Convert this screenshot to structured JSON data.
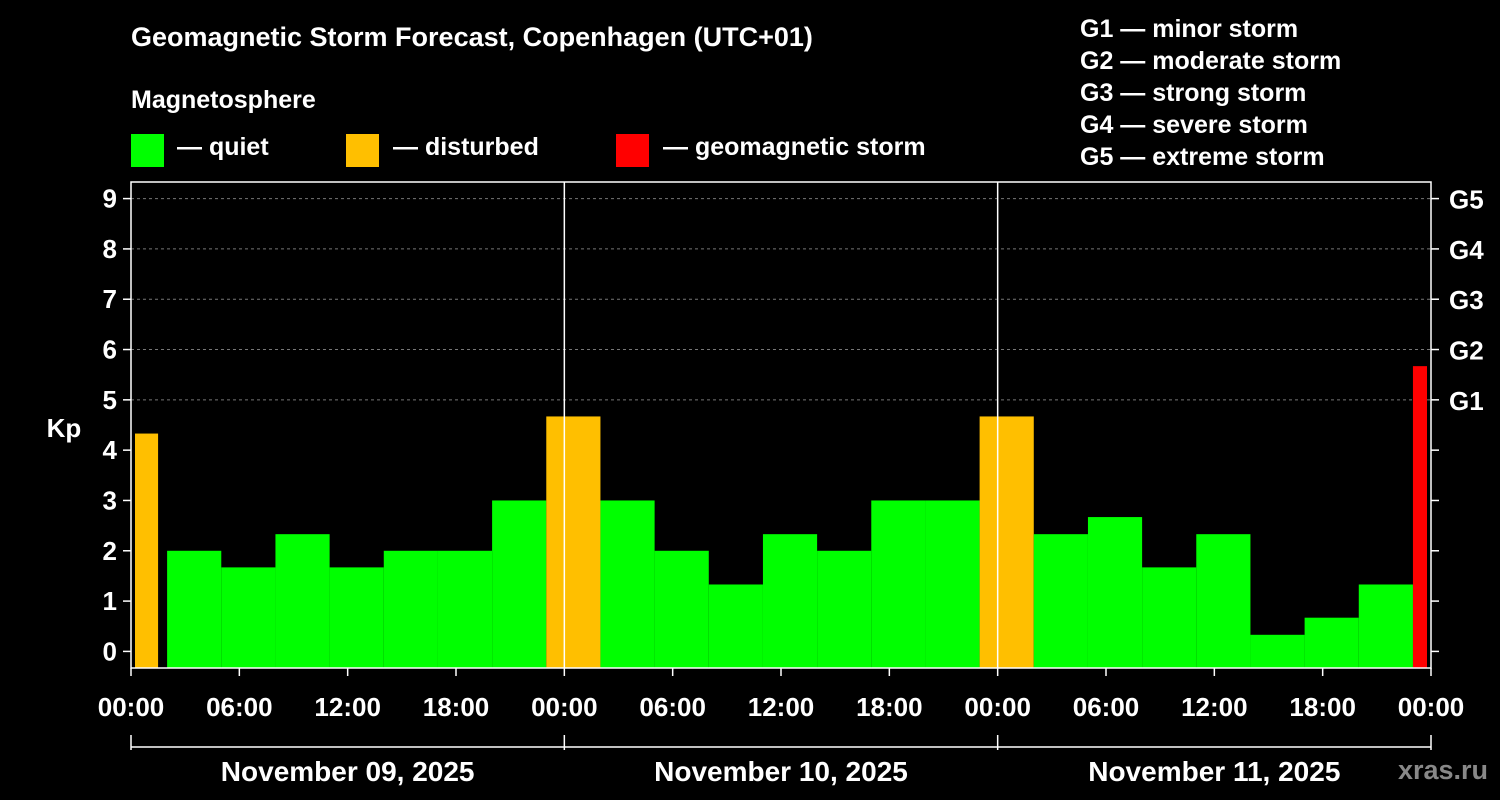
{
  "title": "Geomagnetic Storm Forecast, Copenhagen (UTC+01)",
  "magnetosphere_heading": "Magnetosphere",
  "legend": [
    {
      "label": "— quiet",
      "color": "#00ff00"
    },
    {
      "label": "— disturbed",
      "color": "#ffbf00"
    },
    {
      "label": "— geomagnetic storm",
      "color": "#ff0000"
    }
  ],
  "storm_scale": [
    "G1 — minor storm",
    "G2 — moderate storm",
    "G3 — strong storm",
    "G4 — severe storm",
    "G5 — extreme storm"
  ],
  "watermark": "xras.ru",
  "chart_data": {
    "type": "bar",
    "title": "Geomagnetic Storm Forecast, Copenhagen (UTC+01)",
    "ylabel": "Kp",
    "ylim": [
      -0.33,
      9.33
    ],
    "y_ticks": [
      0,
      1,
      2,
      3,
      4,
      5,
      6,
      7,
      8,
      9
    ],
    "right_axis": [
      {
        "kp": 5,
        "label": "G1"
      },
      {
        "kp": 6,
        "label": "G2"
      },
      {
        "kp": 7,
        "label": "G3"
      },
      {
        "kp": 8,
        "label": "G4"
      },
      {
        "kp": 9,
        "label": "G5"
      }
    ],
    "x_ticks": [
      "00:00",
      "06:00",
      "12:00",
      "18:00",
      "00:00",
      "06:00",
      "12:00",
      "18:00",
      "00:00",
      "06:00",
      "12:00",
      "18:00",
      "00:00"
    ],
    "days": [
      "November 09, 2025",
      "November 10, 2025",
      "November 11, 2025"
    ],
    "grid": "horizontal dashed",
    "bars": [
      {
        "day": 0,
        "start_hour": 0,
        "end_hour": 1.5,
        "kp": 4.33,
        "status": "disturbed"
      },
      {
        "day": 0,
        "start_hour": 2,
        "end_hour": 5,
        "kp": 2.0,
        "status": "quiet"
      },
      {
        "day": 0,
        "start_hour": 5,
        "end_hour": 8,
        "kp": 1.67,
        "status": "quiet"
      },
      {
        "day": 0,
        "start_hour": 8,
        "end_hour": 11,
        "kp": 2.33,
        "status": "quiet"
      },
      {
        "day": 0,
        "start_hour": 11,
        "end_hour": 14,
        "kp": 1.67,
        "status": "quiet"
      },
      {
        "day": 0,
        "start_hour": 14,
        "end_hour": 17,
        "kp": 2.0,
        "status": "quiet"
      },
      {
        "day": 0,
        "start_hour": 17,
        "end_hour": 20,
        "kp": 2.0,
        "status": "quiet"
      },
      {
        "day": 0,
        "start_hour": 20,
        "end_hour": 23,
        "kp": 3.0,
        "status": "quiet"
      },
      {
        "day": 0,
        "start_hour": 23,
        "end_hour": 26,
        "kp": 4.67,
        "status": "disturbed"
      },
      {
        "day": 1,
        "start_hour": 2,
        "end_hour": 5,
        "kp": 3.0,
        "status": "quiet"
      },
      {
        "day": 1,
        "start_hour": 5,
        "end_hour": 8,
        "kp": 2.0,
        "status": "quiet"
      },
      {
        "day": 1,
        "start_hour": 8,
        "end_hour": 11,
        "kp": 1.33,
        "status": "quiet"
      },
      {
        "day": 1,
        "start_hour": 11,
        "end_hour": 14,
        "kp": 2.33,
        "status": "quiet"
      },
      {
        "day": 1,
        "start_hour": 14,
        "end_hour": 17,
        "kp": 2.0,
        "status": "quiet"
      },
      {
        "day": 1,
        "start_hour": 17,
        "end_hour": 20,
        "kp": 3.0,
        "status": "quiet"
      },
      {
        "day": 1,
        "start_hour": 20,
        "end_hour": 23,
        "kp": 3.0,
        "status": "quiet"
      },
      {
        "day": 1,
        "start_hour": 23,
        "end_hour": 26,
        "kp": 4.67,
        "status": "disturbed"
      },
      {
        "day": 2,
        "start_hour": 2,
        "end_hour": 5,
        "kp": 2.33,
        "status": "quiet"
      },
      {
        "day": 2,
        "start_hour": 5,
        "end_hour": 8,
        "kp": 2.67,
        "status": "quiet"
      },
      {
        "day": 2,
        "start_hour": 8,
        "end_hour": 11,
        "kp": 1.67,
        "status": "quiet"
      },
      {
        "day": 2,
        "start_hour": 11,
        "end_hour": 14,
        "kp": 2.33,
        "status": "quiet"
      },
      {
        "day": 2,
        "start_hour": 14,
        "end_hour": 17,
        "kp": 0.33,
        "status": "quiet"
      },
      {
        "day": 2,
        "start_hour": 17,
        "end_hour": 20,
        "kp": 0.67,
        "status": "quiet"
      },
      {
        "day": 2,
        "start_hour": 20,
        "end_hour": 23,
        "kp": 1.33,
        "status": "quiet"
      },
      {
        "day": 2,
        "start_hour": 23,
        "end_hour": 24,
        "kp": 5.67,
        "status": "storm"
      }
    ]
  }
}
